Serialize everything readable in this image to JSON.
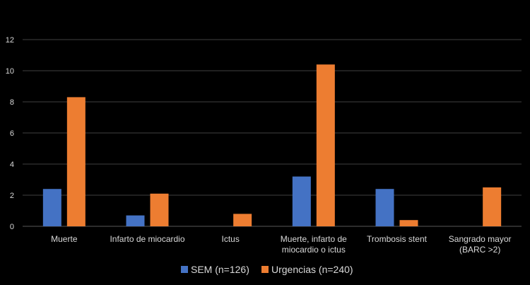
{
  "chart_data": {
    "type": "bar",
    "categories": [
      [
        "Muerte"
      ],
      [
        "Infarto de miocardio"
      ],
      [
        "Ictus"
      ],
      [
        "Muerte, infarto de",
        "miocardio o ictus"
      ],
      [
        "Trombosis stent"
      ],
      [
        "Sangrado mayor",
        "(BARC >2)"
      ]
    ],
    "series": [
      {
        "name": "SEM (n=126)",
        "values": [
          2.4,
          0.7,
          0,
          3.2,
          2.4,
          0
        ],
        "color": "#4472c4"
      },
      {
        "name": "Urgencias (n=240)",
        "values": [
          8.3,
          2.1,
          0.8,
          10.4,
          0.4,
          2.5
        ],
        "color": "#ed7d31"
      }
    ],
    "ylim": [
      0,
      12
    ],
    "yticks": [
      0,
      2,
      4,
      6,
      8,
      10,
      12
    ],
    "grid": true,
    "legend_position": "bottom",
    "colors": {
      "background": "#000000",
      "grid": "#404040",
      "text": "#d9d9d9"
    }
  }
}
